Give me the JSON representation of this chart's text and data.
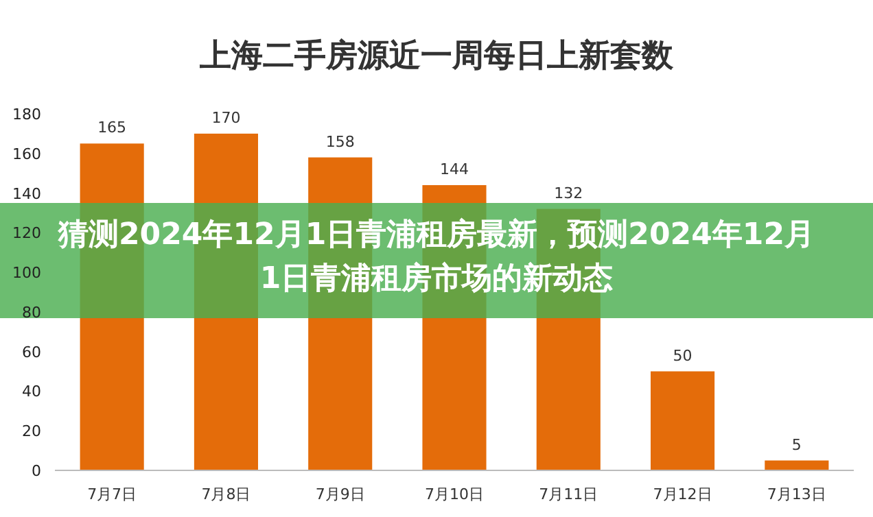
{
  "chart_data": {
    "type": "bar",
    "title": "上海二手房源近一周每日上新套数",
    "categories": [
      "7月7日",
      "7月8日",
      "7月9日",
      "7月10日",
      "7月11日",
      "7月12日",
      "7月13日"
    ],
    "values": [
      165,
      170,
      158,
      144,
      132,
      50,
      5
    ],
    "color": "#e46c0a",
    "ylim": [
      0,
      180
    ],
    "yticks": [
      0,
      20,
      40,
      60,
      80,
      100,
      120,
      140,
      160,
      180
    ],
    "data_labels": true,
    "grid": false,
    "annotations": [
      "猜测2024年12月1日青浦租房最新，预测2024年12月1日青浦租房市场的新动态"
    ]
  }
}
